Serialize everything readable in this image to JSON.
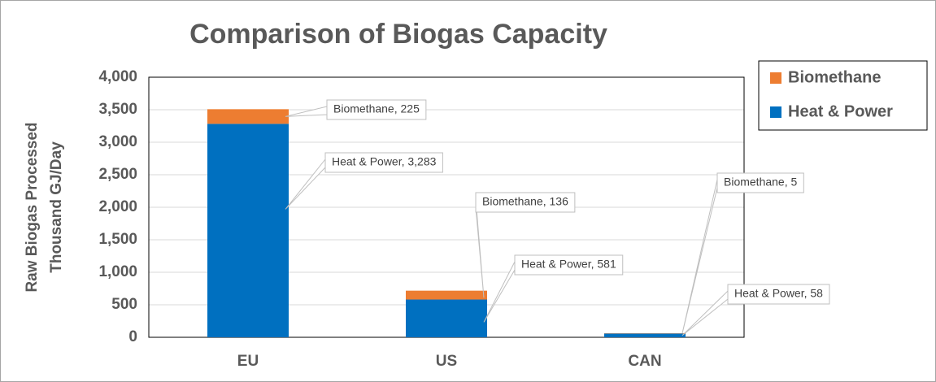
{
  "chart_data": {
    "type": "stacked_bar",
    "title": "Comparison of Biogas Capacity",
    "y_label": [
      "Raw Biogas Processed",
      "Thousand GJ/Day"
    ],
    "categories": [
      "EU",
      "US",
      "CAN"
    ],
    "series": [
      {
        "name": "Heat & Power",
        "color": "#0070c0",
        "values": [
          3283,
          581,
          58
        ],
        "value_labels": [
          "Heat & Power, 3,283",
          "Heat & Power, 581",
          "Heat & Power, 58"
        ]
      },
      {
        "name": "Biomethane",
        "color": "#ed7d31",
        "values": [
          225,
          136,
          5
        ],
        "value_labels": [
          "Biomethane, 225",
          "Biomethane, 136",
          "Biomethane, 5"
        ]
      }
    ],
    "ylim": [
      0,
      4000
    ],
    "yticks": [
      0,
      500,
      {
        "value": 1000,
        "label": "1,000"
      },
      {
        "value": 1500,
        "label": "1,500"
      },
      {
        "value": 2000,
        "label": "2,000"
      },
      {
        "value": 2500,
        "label": "2,500"
      },
      {
        "value": 3000,
        "label": "3,000"
      },
      {
        "value": 3500,
        "label": "3,500"
      },
      {
        "value": 4000,
        "label": "4,000"
      }
    ],
    "grid": true,
    "legend": "right"
  }
}
